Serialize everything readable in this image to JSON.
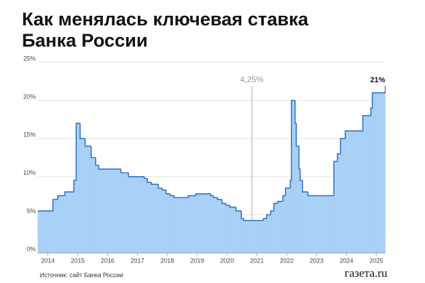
{
  "chart_data": {
    "type": "step-area",
    "title": [
      "Как менялась ключевая ставка",
      "Банка России"
    ],
    "source": "Источник: сайт Банка России",
    "brand": "газета.ru",
    "xlim": [
      2013.66,
      2025.3
    ],
    "xticks": [
      2014,
      2015,
      2016,
      2017,
      2018,
      2019,
      2020,
      2021,
      2022,
      2023,
      2024,
      2025
    ],
    "ylim": [
      0,
      25
    ],
    "yticks": [
      {
        "value": 0,
        "label": "0%"
      },
      {
        "value": 5,
        "label": "5%"
      },
      {
        "value": 10,
        "label": "10%"
      },
      {
        "value": 15,
        "label": "15%"
      },
      {
        "value": 20,
        "label": "20%"
      },
      {
        "value": 25,
        "label": "25%"
      }
    ],
    "grid": true,
    "series": [
      {
        "color": "#2f74c6",
        "fill": "#a9d0f7",
        "x": [
          2013.66,
          2014.17,
          2014.33,
          2014.57,
          2014.87,
          2014.95,
          2015.08,
          2015.25,
          2015.45,
          2015.6,
          2015.7,
          2016.45,
          2016.7,
          2017.23,
          2017.33,
          2017.47,
          2017.7,
          2017.83,
          2017.96,
          2018.1,
          2018.23,
          2018.7,
          2018.96,
          2019.45,
          2019.55,
          2019.68,
          2019.83,
          2019.96,
          2020.1,
          2020.3,
          2020.48,
          2020.56,
          2021.22,
          2021.33,
          2021.46,
          2021.57,
          2021.7,
          2021.87,
          2021.96,
          2022.12,
          2022.16,
          2022.28,
          2022.32,
          2022.41,
          2022.45,
          2022.53,
          2022.71,
          2023.58,
          2023.7,
          2023.8,
          2023.96,
          2024.55,
          2024.82,
          2024.87
        ],
        "values": [
          5.5,
          7,
          7.5,
          8,
          9.5,
          17,
          15,
          14,
          12.5,
          11.5,
          11,
          10.5,
          10,
          9.75,
          9.25,
          9,
          8.5,
          8.25,
          7.75,
          7.5,
          7.25,
          7.5,
          7.75,
          7.5,
          7.25,
          7,
          6.5,
          6.25,
          6,
          5.5,
          4.5,
          4.25,
          4.5,
          5,
          5.5,
          6.5,
          6.75,
          7.5,
          8.5,
          9.5,
          20,
          17,
          14,
          11,
          9.5,
          8,
          7.5,
          12,
          13,
          15,
          16,
          18,
          19,
          21
        ]
      }
    ],
    "annotations": [
      {
        "label": "4,25%",
        "x": 2020.83,
        "value": 4.25,
        "color": "#9a9a9a"
      },
      {
        "label": "21%",
        "x": 2025.3,
        "value": 21,
        "color": "#111111"
      }
    ]
  }
}
